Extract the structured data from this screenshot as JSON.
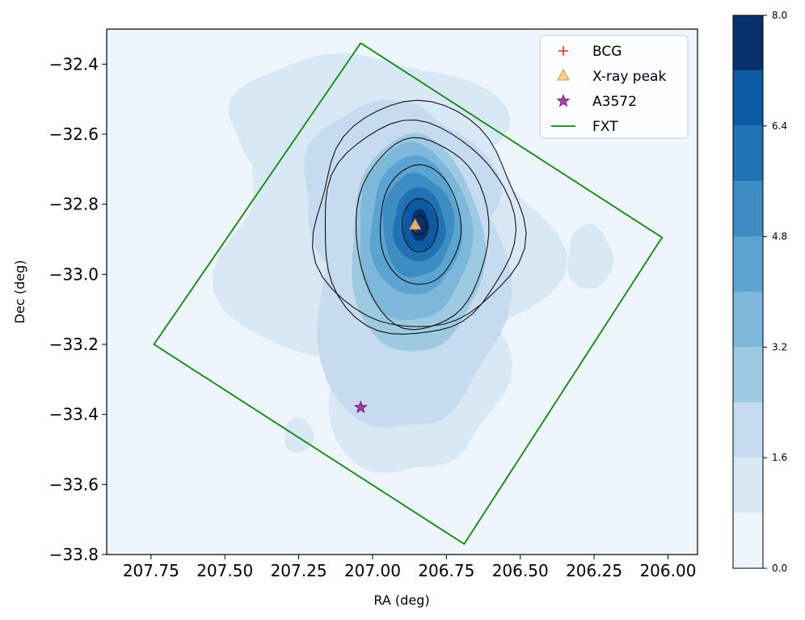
{
  "chart_data": {
    "type": "contour",
    "xlabel": "RA (deg)",
    "ylabel": "Dec (deg)",
    "xlim": [
      207.9,
      205.9
    ],
    "ylim": [
      -33.8,
      -32.3
    ],
    "x_ticks": [
      207.75,
      207.5,
      207.25,
      207.0,
      206.75,
      206.5,
      206.25,
      206.0
    ],
    "x_tick_labels": [
      "207.75",
      "207.50",
      "207.25",
      "207.00",
      "206.75",
      "206.50",
      "206.25",
      "206.00"
    ],
    "y_ticks": [
      -32.4,
      -32.6,
      -32.8,
      -33.0,
      -33.2,
      -33.4,
      -33.6,
      -33.8
    ],
    "y_tick_labels": [
      "−32.4",
      "−32.6",
      "−32.8",
      "−33.0",
      "−33.2",
      "−33.4",
      "−33.6",
      "−33.8"
    ],
    "colorbar": {
      "levels": [
        0.0,
        0.8,
        1.6,
        2.4,
        3.2,
        4.0,
        4.8,
        5.6,
        6.4,
        7.2,
        8.0
      ],
      "tick_values": [
        0.0,
        1.6,
        3.2,
        4.8,
        6.4,
        8.0
      ],
      "tick_labels": [
        "0.0",
        "1.6",
        "3.2",
        "4.8",
        "6.4",
        "8.0"
      ],
      "colors": [
        "#eef5fc",
        "#d9e8f5",
        "#c6dbef",
        "#9ecae1",
        "#7db8da",
        "#5ba3d0",
        "#3d8dc3",
        "#2171b5",
        "#0b5aa2",
        "#08306b"
      ]
    },
    "density_centers": [
      {
        "x": 206.84,
        "y": -32.86,
        "value": 7.6
      },
      {
        "x": 206.92,
        "y": -32.72,
        "value": 4.2
      },
      {
        "x": 206.88,
        "y": -33.12,
        "value": 2.6
      },
      {
        "x": 206.85,
        "y": -33.45,
        "value": 1.4
      }
    ],
    "xray_contour_count": 6,
    "series": [
      {
        "name": "BCG",
        "marker": "plus",
        "color": "#e8302a",
        "points": [
          [
            206.855,
            -32.865
          ]
        ]
      },
      {
        "name": "X-ray peak",
        "marker": "triangle",
        "color": "#f5c77e",
        "points": [
          [
            206.856,
            -32.86
          ]
        ]
      },
      {
        "name": "A3572",
        "marker": "star",
        "color": "#8b1a8b",
        "points": [
          [
            207.04,
            -33.38
          ]
        ]
      },
      {
        "name": "FXT",
        "marker": "line",
        "color": "#0a8a0a",
        "points": [
          [
            207.04,
            -32.34
          ],
          [
            206.02,
            -32.895
          ],
          [
            206.69,
            -33.77
          ],
          [
            207.74,
            -33.2
          ],
          [
            207.04,
            -32.34
          ]
        ]
      }
    ],
    "legend_position": "top-right",
    "grid": false
  }
}
